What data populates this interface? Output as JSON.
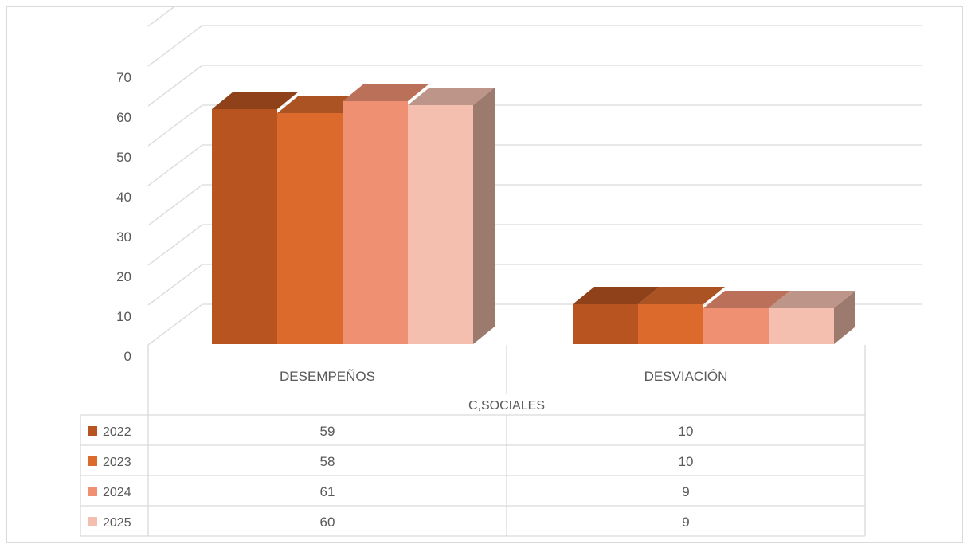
{
  "chart_data": {
    "type": "bar",
    "chart_style": "3d-clustered-column-with-data-table",
    "group_label": "C,SOCIALES",
    "categories": [
      "DESEMPEÑOS",
      "DESVIACIÓN"
    ],
    "series": [
      {
        "name": "2022",
        "values": [
          59,
          10
        ],
        "color": "#b75420"
      },
      {
        "name": "2023",
        "values": [
          58,
          10
        ],
        "color": "#dc6a2d"
      },
      {
        "name": "2024",
        "values": [
          61,
          9
        ],
        "color": "#f09072"
      },
      {
        "name": "2025",
        "values": [
          60,
          9
        ],
        "color": "#f4bfaf"
      }
    ],
    "yticks": [
      0,
      10,
      20,
      30,
      40,
      50,
      60,
      70
    ],
    "ylim": [
      0,
      80
    ],
    "grid": true,
    "legend": "data-table-left"
  }
}
